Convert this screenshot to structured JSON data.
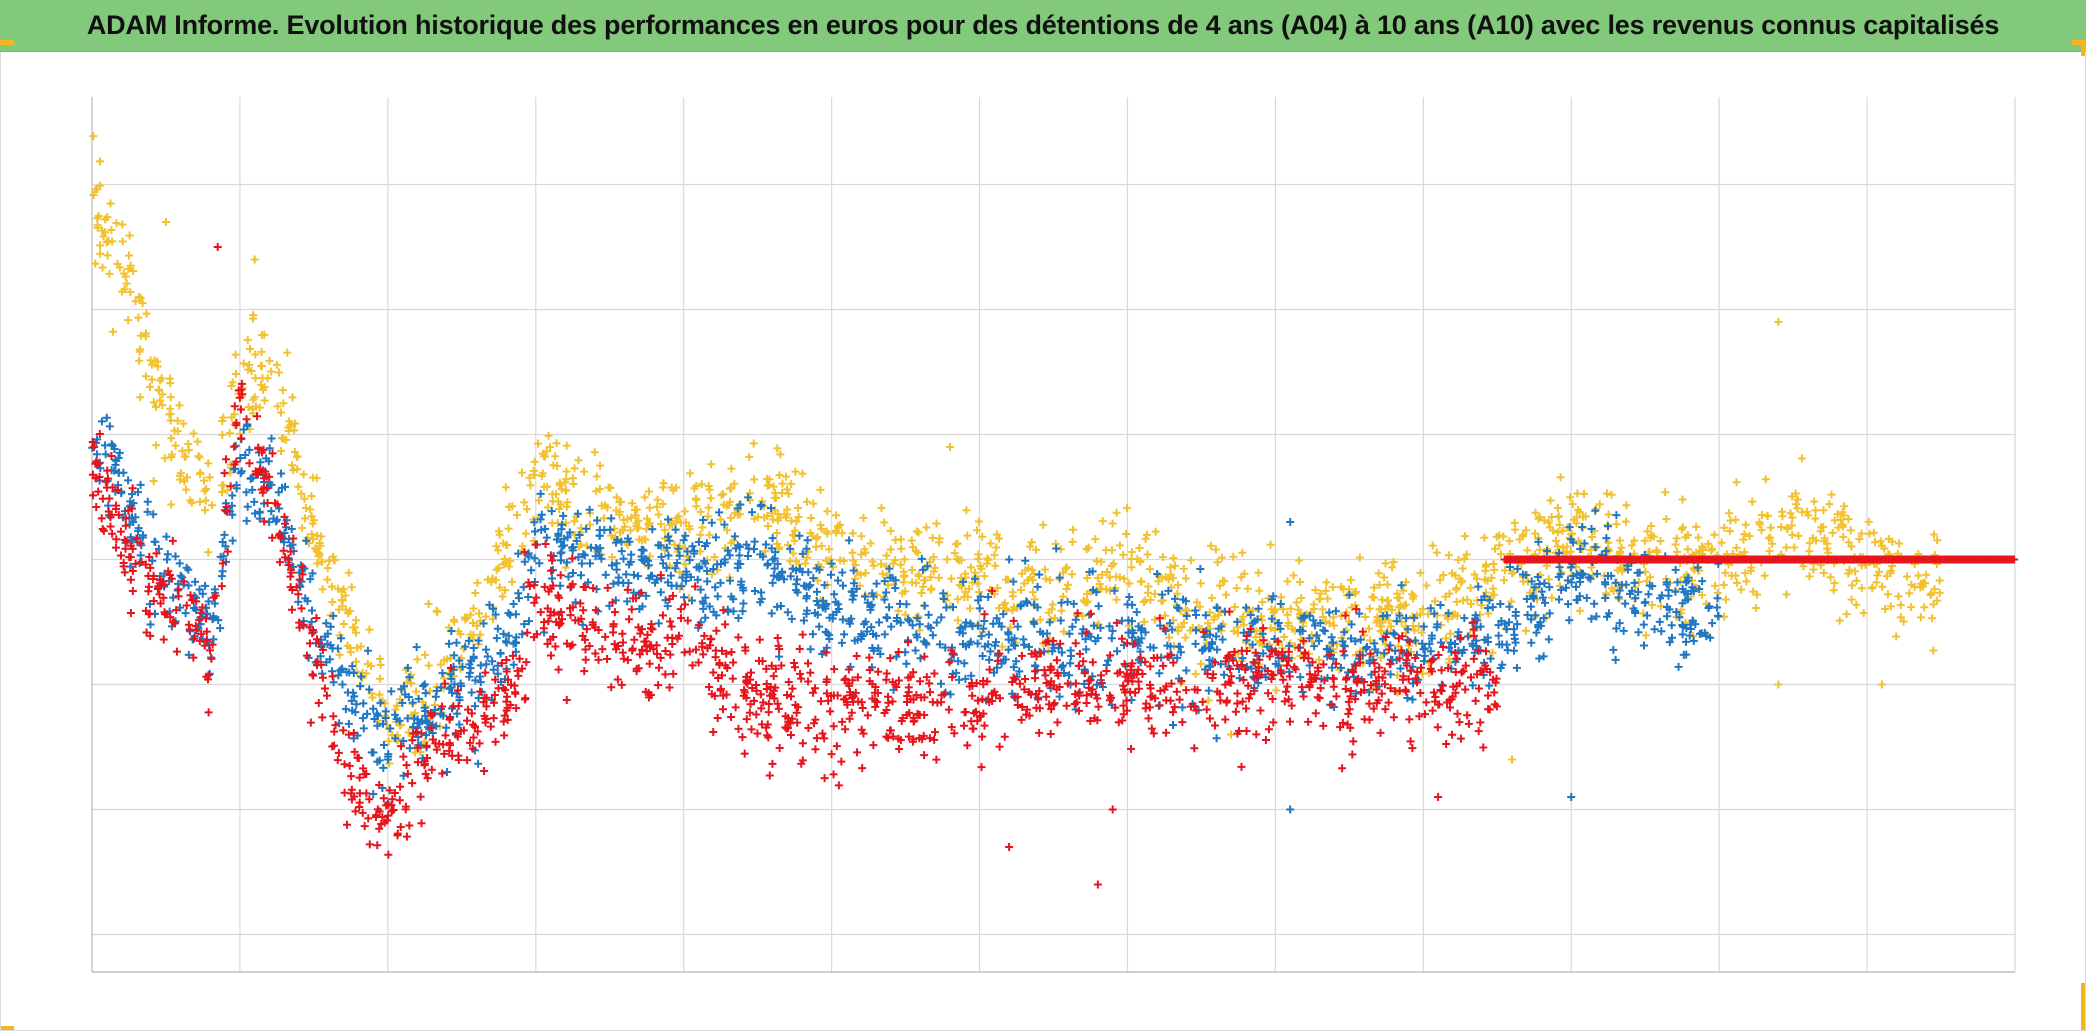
{
  "title": "ADAM Informe. Evolution historique des performances en euros pour des détentions de 4 ans (A04) à 10 ans (A10) avec les revenus connus capitalisés",
  "chart_data": {
    "type": "scatter",
    "title": "ADAM Informe. Evolution historique des performances en euros pour des détentions de 4 ans (A04) à 10 ans (A10) avec les revenus connus capitalisés",
    "xlabel": "",
    "ylabel": "",
    "marker": "+",
    "grid": true,
    "legend": "none",
    "x_tick_labels": [],
    "y_tick_labels": [],
    "xlim": [
      0,
      13
    ],
    "ylim": [
      -0.3,
      6.7
    ],
    "y_gridlines": [
      0,
      1,
      2,
      3,
      4,
      5,
      6
    ],
    "y_extra_line": -0.3,
    "series": [
      {
        "color": "#f2c12e",
        "x": [
          0.0,
          0.2,
          0.4,
          0.6,
          0.8,
          1.0,
          1.2,
          1.5,
          1.8,
          2.0,
          2.2,
          2.5,
          2.8,
          3.0,
          3.5,
          4.0,
          4.5,
          5.0,
          5.5,
          6.0,
          6.5,
          7.0,
          7.5,
          8.0,
          8.5,
          9.0,
          9.5,
          10.0,
          10.5,
          11.0,
          11.5,
          12.0,
          12.5
        ],
        "y": [
          5.8,
          5.5,
          4.4,
          3.9,
          3.4,
          4.4,
          4.5,
          3.2,
          2.3,
          1.7,
          1.8,
          2.4,
          3.0,
          3.6,
          3.3,
          3.2,
          3.5,
          3.0,
          2.9,
          2.9,
          2.7,
          3.0,
          2.5,
          2.6,
          2.5,
          2.6,
          2.8,
          3.2,
          2.9,
          3.0,
          3.2,
          3.0,
          2.7
        ],
        "points": [
          [
            1.1,
            5.4
          ],
          [
            0.5,
            5.7
          ],
          [
            5.8,
            3.9
          ],
          [
            11.4,
            4.9
          ],
          [
            11.4,
            2.0
          ],
          [
            12.1,
            2.0
          ],
          [
            9.6,
            1.4
          ],
          [
            7.7,
            1.6
          ]
        ]
      },
      {
        "color": "#1f77c4",
        "x": [
          0.0,
          0.2,
          0.4,
          0.6,
          0.8,
          1.0,
          1.2,
          1.5,
          1.8,
          2.0,
          2.2,
          2.5,
          2.8,
          3.0,
          3.5,
          4.0,
          4.5,
          5.0,
          5.5,
          6.0,
          6.5,
          7.0,
          7.5,
          8.0,
          8.5,
          9.0,
          9.5,
          10.0,
          10.5,
          11.0
        ],
        "y": [
          4.0,
          3.6,
          3.0,
          2.7,
          2.4,
          3.8,
          3.6,
          2.5,
          1.8,
          1.6,
          1.7,
          2.0,
          2.3,
          3.0,
          3.0,
          2.9,
          3.0,
          2.6,
          2.5,
          2.3,
          2.3,
          2.4,
          2.3,
          2.3,
          2.3,
          2.3,
          2.4,
          2.9,
          2.7,
          2.5
        ],
        "points": [
          [
            2.4,
            1.3
          ],
          [
            8.1,
            1.0
          ],
          [
            8.1,
            3.3
          ],
          [
            6.2,
            3.0
          ],
          [
            10.0,
            1.1
          ],
          [
            2.0,
            1.4
          ]
        ]
      },
      {
        "color": "#e8141c",
        "x": [
          0.0,
          0.2,
          0.4,
          0.6,
          0.8,
          1.0,
          1.2,
          1.5,
          1.7,
          1.9,
          2.2,
          2.5,
          2.8,
          3.0,
          3.5,
          4.0,
          4.5,
          5.0,
          5.5,
          6.0,
          6.5,
          7.0,
          7.5,
          8.0,
          8.5,
          9.0,
          9.5
        ],
        "y": [
          3.8,
          3.2,
          2.8,
          2.6,
          2.3,
          4.3,
          3.5,
          2.3,
          1.5,
          0.9,
          1.3,
          1.7,
          1.9,
          2.6,
          2.3,
          2.3,
          1.9,
          1.8,
          1.8,
          1.9,
          2.0,
          2.0,
          1.9,
          2.1,
          2.0,
          2.0,
          2.0
        ],
        "points": [
          [
            6.2,
            0.7
          ],
          [
            6.8,
            0.4
          ],
          [
            0.85,
            5.5
          ],
          [
            9.1,
            1.1
          ],
          [
            6.9,
            1.0
          ]
        ],
        "constant_segment": {
          "x": [
            9.55,
            13.0
          ],
          "y": 3.0
        }
      }
    ]
  }
}
